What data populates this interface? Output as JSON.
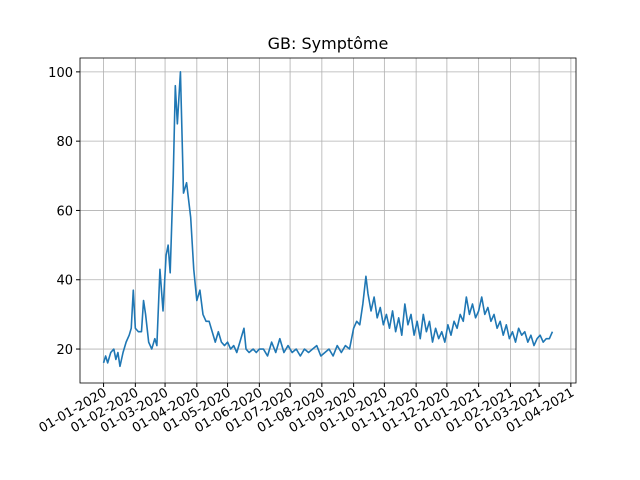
{
  "chart_data": {
    "type": "line",
    "title": "GB: Symptôme",
    "x": [
      "2020-01-01",
      "2020-01-03",
      "2020-01-05",
      "2020-01-08",
      "2020-01-11",
      "2020-01-13",
      "2020-01-15",
      "2020-01-17",
      "2020-01-20",
      "2020-01-23",
      "2020-01-26",
      "2020-01-28",
      "2020-01-30",
      "2020-02-01",
      "2020-02-04",
      "2020-02-07",
      "2020-02-09",
      "2020-02-11",
      "2020-02-14",
      "2020-02-17",
      "2020-02-20",
      "2020-02-22",
      "2020-02-25",
      "2020-02-28",
      "2020-03-02",
      "2020-03-04",
      "2020-03-06",
      "2020-03-09",
      "2020-03-11",
      "2020-03-13",
      "2020-03-16",
      "2020-03-19",
      "2020-03-22",
      "2020-03-26",
      "2020-03-29",
      "2020-04-01",
      "2020-04-04",
      "2020-04-07",
      "2020-04-10",
      "2020-04-13",
      "2020-04-16",
      "2020-04-19",
      "2020-04-22",
      "2020-04-25",
      "2020-04-28",
      "2020-05-01",
      "2020-05-04",
      "2020-05-07",
      "2020-05-10",
      "2020-05-17",
      "2020-05-19",
      "2020-05-22",
      "2020-05-26",
      "2020-05-29",
      "2020-06-01",
      "2020-06-05",
      "2020-06-09",
      "2020-06-13",
      "2020-06-17",
      "2020-06-21",
      "2020-06-25",
      "2020-06-29",
      "2020-07-03",
      "2020-07-07",
      "2020-07-11",
      "2020-07-15",
      "2020-07-19",
      "2020-07-23",
      "2020-07-27",
      "2020-07-31",
      "2020-08-04",
      "2020-08-08",
      "2020-08-12",
      "2020-08-16",
      "2020-08-20",
      "2020-08-24",
      "2020-08-28",
      "2020-09-01",
      "2020-09-04",
      "2020-09-07",
      "2020-09-10",
      "2020-09-13",
      "2020-09-15",
      "2020-09-18",
      "2020-09-21",
      "2020-09-24",
      "2020-09-27",
      "2020-09-30",
      "2020-10-03",
      "2020-10-06",
      "2020-10-09",
      "2020-10-12",
      "2020-10-15",
      "2020-10-18",
      "2020-10-21",
      "2020-10-24",
      "2020-10-27",
      "2020-10-30",
      "2020-11-02",
      "2020-11-05",
      "2020-11-08",
      "2020-11-11",
      "2020-11-14",
      "2020-11-17",
      "2020-11-20",
      "2020-11-23",
      "2020-11-26",
      "2020-11-29",
      "2020-12-02",
      "2020-12-05",
      "2020-12-08",
      "2020-12-11",
      "2020-12-14",
      "2020-12-17",
      "2020-12-20",
      "2020-12-23",
      "2020-12-26",
      "2020-12-29",
      "2021-01-01",
      "2021-01-04",
      "2021-01-07",
      "2021-01-10",
      "2021-01-13",
      "2021-01-16",
      "2021-01-19",
      "2021-01-22",
      "2021-01-25",
      "2021-01-28",
      "2021-01-31",
      "2021-02-03",
      "2021-02-06",
      "2021-02-09",
      "2021-02-12",
      "2021-02-15",
      "2021-02-18",
      "2021-02-21",
      "2021-02-24",
      "2021-02-27",
      "2021-03-02",
      "2021-03-05",
      "2021-03-08",
      "2021-03-11",
      "2021-03-14"
    ],
    "series": [
      {
        "color": "#1f77b4",
        "values": [
          16,
          18,
          16,
          19,
          20,
          17,
          19,
          15,
          19,
          22,
          24,
          26,
          37,
          26,
          25,
          25,
          34,
          30,
          22,
          20,
          23,
          21,
          43,
          31,
          47,
          50,
          42,
          70,
          96,
          85,
          100,
          65,
          68,
          58,
          43,
          34,
          37,
          30,
          28,
          28,
          25,
          22,
          25,
          22,
          21,
          22,
          20,
          21,
          19,
          26,
          20,
          19,
          20,
          19,
          20,
          20,
          18,
          22,
          19,
          23,
          19,
          21,
          19,
          20,
          18,
          20,
          19,
          20,
          21,
          18,
          19,
          20,
          18,
          21,
          19,
          21,
          20,
          26,
          28,
          27,
          33,
          41,
          36,
          31,
          35,
          29,
          32,
          27,
          30,
          26,
          31,
          25,
          29,
          24,
          33,
          27,
          30,
          24,
          28,
          23,
          30,
          25,
          28,
          22,
          26,
          23,
          25,
          22,
          27,
          24,
          28,
          26,
          30,
          28,
          35,
          30,
          33,
          29,
          31,
          35,
          30,
          32,
          28,
          30,
          26,
          28,
          24,
          27,
          23,
          25,
          22,
          26,
          24,
          25,
          22,
          24,
          21,
          23,
          24,
          22,
          23,
          23,
          25
        ]
      }
    ],
    "xlim": [
      "2019-12-09",
      "2021-04-06"
    ],
    "xticks": [
      {
        "value": "2020-01-01",
        "label": "01-01-2020"
      },
      {
        "value": "2020-02-01",
        "label": "01-02-2020"
      },
      {
        "value": "2020-03-01",
        "label": "01-03-2020"
      },
      {
        "value": "2020-04-01",
        "label": "01-04-2020"
      },
      {
        "value": "2020-05-01",
        "label": "01-05-2020"
      },
      {
        "value": "2020-06-01",
        "label": "01-06-2020"
      },
      {
        "value": "2020-07-01",
        "label": "01-07-2020"
      },
      {
        "value": "2020-08-01",
        "label": "01-08-2020"
      },
      {
        "value": "2020-09-01",
        "label": "01-09-2020"
      },
      {
        "value": "2020-10-01",
        "label": "01-10-2020"
      },
      {
        "value": "2020-11-01",
        "label": "01-11-2020"
      },
      {
        "value": "2020-12-01",
        "label": "01-12-2020"
      },
      {
        "value": "2021-01-01",
        "label": "01-01-2021"
      },
      {
        "value": "2021-02-01",
        "label": "01-02-2021"
      },
      {
        "value": "2021-03-01",
        "label": "01-03-2021"
      },
      {
        "value": "2021-04-01",
        "label": "01-04-2021"
      }
    ],
    "ylim": [
      10.2,
      104
    ],
    "yticks": [
      20,
      40,
      60,
      80,
      100
    ],
    "grid": true
  }
}
